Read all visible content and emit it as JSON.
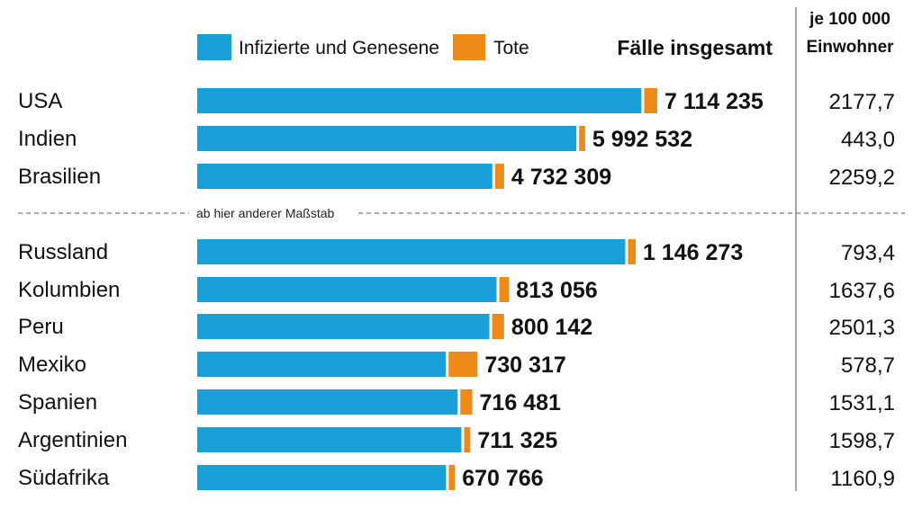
{
  "legend": {
    "infected_label": "Infizierte und Genesene",
    "dead_label": "Tote",
    "total_header": "Fälle insgesamt"
  },
  "per_capita_header": [
    "je 100 000",
    "Einwohner"
  ],
  "scale_note": "ab hier anderer Maßstab",
  "colors": {
    "infected": "#1aa0d8",
    "dead": "#ee8a1a",
    "divider": "#888888"
  },
  "chart_data": [
    {
      "type": "bar",
      "orientation": "horizontal",
      "stacked": true,
      "scale_group": "top",
      "categories": [
        "USA",
        "Indien",
        "Brasilien"
      ],
      "series": [
        {
          "name": "Infizierte und Genesene",
          "values": [
            6909500,
            5898400,
            4590100
          ]
        },
        {
          "name": "Tote",
          "values": [
            204735,
            94132,
            142209
          ]
        }
      ],
      "totals": [
        7114235,
        5992532,
        4732309
      ],
      "total_labels": [
        "7 114 235",
        "5 992 532",
        "4 732 309"
      ],
      "per_100000": [
        "2177,7",
        "443,0",
        "2259,2"
      ]
    },
    {
      "type": "bar",
      "orientation": "horizontal",
      "stacked": true,
      "scale_group": "bottom",
      "categories": [
        "Russland",
        "Kolumbien",
        "Peru",
        "Mexiko",
        "Spanien",
        "Argentinien",
        "Südafrika"
      ],
      "series": [
        {
          "name": "Infizierte und Genesene",
          "values": [
            1126000,
            787500,
            768500,
            654000,
            685000,
            695000,
            654500
          ]
        },
        {
          "name": "Tote",
          "values": [
            20273,
            25556,
            31642,
            76317,
            31481,
            16325,
            16266
          ]
        }
      ],
      "totals": [
        1146273,
        813056,
        800142,
        730317,
        716481,
        711325,
        670766
      ],
      "total_labels": [
        "1 146 273",
        "813 056",
        "800 142",
        "730 317",
        "716 481",
        "711 325",
        "670 766"
      ],
      "per_100000": [
        "793,4",
        "1637,6",
        "2501,3",
        "578,7",
        "1531,1",
        "1598,7",
        "1160,9"
      ]
    }
  ]
}
